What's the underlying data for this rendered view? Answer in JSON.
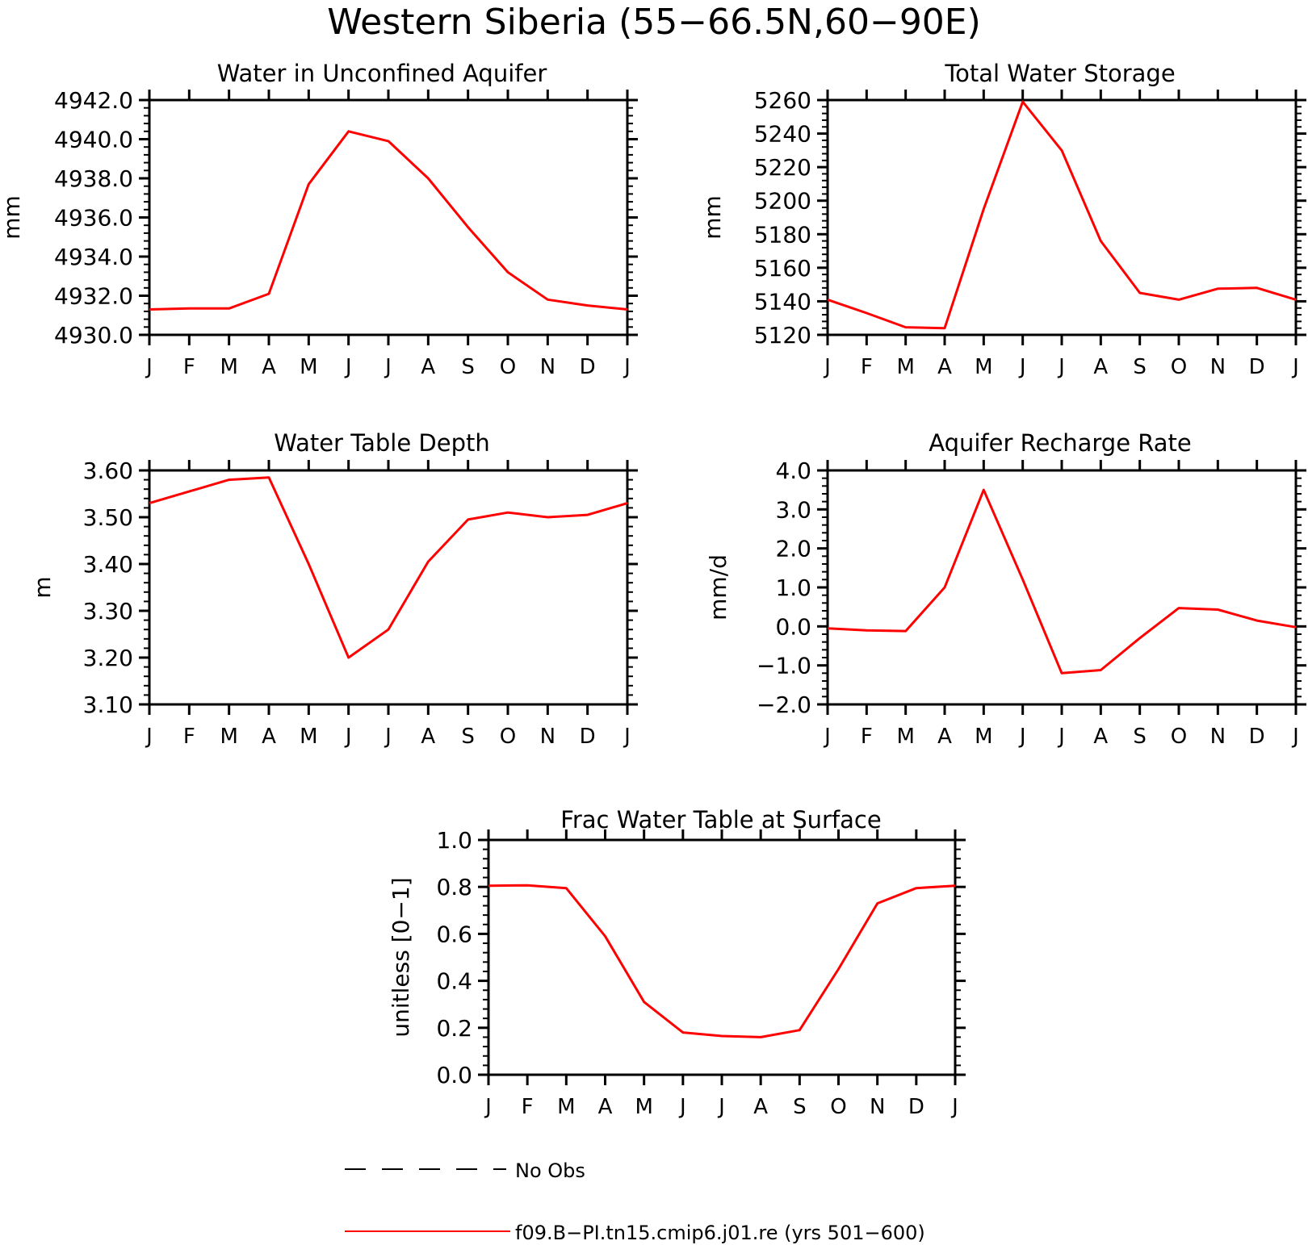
{
  "figure": {
    "title": "Western Siberia (55−66.5N,60−90E)",
    "line_color": "#ff0000",
    "legend": {
      "entries": [
        {
          "label": "No Obs",
          "style": "dashed",
          "color": "#000000"
        },
        {
          "label": "f09.B−PI.tn15.cmip6.j01.re (yrs 501−600)",
          "style": "solid",
          "color": "#ff0000"
        }
      ]
    }
  },
  "chart_data": [
    {
      "type": "line",
      "title": "Water in Unconfined Aquifer",
      "ylabel": "mm",
      "categories": [
        "J",
        "F",
        "M",
        "A",
        "M",
        "J",
        "J",
        "A",
        "S",
        "O",
        "N",
        "D",
        "J"
      ],
      "ylim": [
        4930.0,
        4942.0
      ],
      "yticks": [
        "4930.0",
        "4932.0",
        "4934.0",
        "4936.0",
        "4938.0",
        "4940.0",
        "4942.0"
      ],
      "series": [
        {
          "values": [
            4931.3,
            4931.35,
            4931.35,
            4932.1,
            4937.7,
            4940.4,
            4939.9,
            4938.0,
            4935.5,
            4933.2,
            4931.8,
            4931.5,
            4931.3
          ]
        }
      ]
    },
    {
      "type": "line",
      "title": "Total Water Storage",
      "ylabel": "mm",
      "categories": [
        "J",
        "F",
        "M",
        "A",
        "M",
        "J",
        "J",
        "A",
        "S",
        "O",
        "N",
        "D",
        "J"
      ],
      "ylim": [
        5120,
        5260
      ],
      "yticks": [
        "5120",
        "5140",
        "5160",
        "5180",
        "5200",
        "5220",
        "5240",
        "5260"
      ],
      "series": [
        {
          "values": [
            5141,
            5133,
            5124.5,
            5124,
            5195,
            5259,
            5230,
            5176,
            5145,
            5141,
            5147.5,
            5148,
            5141
          ]
        }
      ]
    },
    {
      "type": "line",
      "title": "Water Table Depth",
      "ylabel": "m",
      "categories": [
        "J",
        "F",
        "M",
        "A",
        "M",
        "J",
        "J",
        "A",
        "S",
        "O",
        "N",
        "D",
        "J"
      ],
      "ylim": [
        3.1,
        3.6
      ],
      "yticks": [
        "3.10",
        "3.20",
        "3.30",
        "3.40",
        "3.50",
        "3.60"
      ],
      "series": [
        {
          "values": [
            3.53,
            3.555,
            3.58,
            3.585,
            3.4,
            3.2,
            3.26,
            3.405,
            3.495,
            3.51,
            3.5,
            3.505,
            3.53
          ]
        }
      ]
    },
    {
      "type": "line",
      "title": "Aquifer Recharge Rate",
      "ylabel": "mm/d",
      "categories": [
        "J",
        "F",
        "M",
        "A",
        "M",
        "J",
        "J",
        "A",
        "S",
        "O",
        "N",
        "D",
        "J"
      ],
      "ylim": [
        -2.0,
        4.0
      ],
      "yticks": [
        "−2.0",
        "−1.0",
        "0.0",
        "1.0",
        "2.0",
        "3.0",
        "4.0"
      ],
      "series": [
        {
          "values": [
            -0.05,
            -0.1,
            -0.12,
            1.0,
            3.5,
            1.2,
            -1.2,
            -1.12,
            -0.3,
            0.47,
            0.43,
            0.15,
            -0.02
          ]
        }
      ]
    },
    {
      "type": "line",
      "title": "Frac Water Table at Surface",
      "ylabel": "unitless [0−1]",
      "categories": [
        "J",
        "F",
        "M",
        "A",
        "M",
        "J",
        "J",
        "A",
        "S",
        "O",
        "N",
        "D",
        "J"
      ],
      "ylim": [
        0.0,
        1.0
      ],
      "yticks": [
        "0.0",
        "0.2",
        "0.4",
        "0.6",
        "0.8",
        "1.0"
      ],
      "series": [
        {
          "values": [
            0.805,
            0.807,
            0.795,
            0.59,
            0.31,
            0.18,
            0.165,
            0.16,
            0.19,
            0.45,
            0.73,
            0.795,
            0.805
          ]
        }
      ]
    }
  ]
}
